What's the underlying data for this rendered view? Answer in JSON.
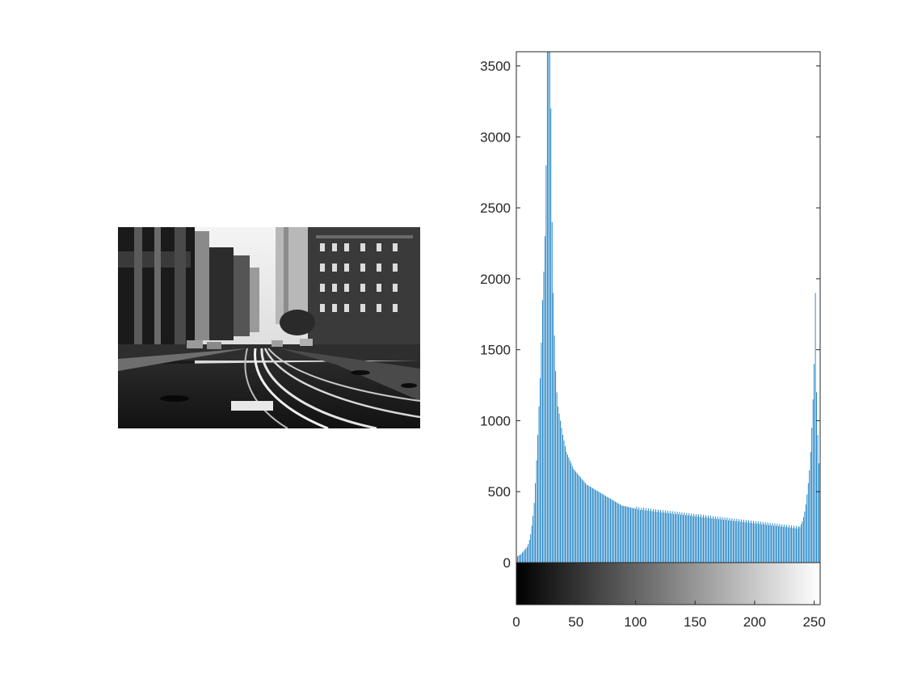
{
  "figure": {
    "image_description_icon": "grayscale-street-photo-icon"
  },
  "colors": {
    "bar": "#0072BD",
    "axis": "#262626",
    "background": "#FFFFFF"
  },
  "chart_data": {
    "type": "bar",
    "title": "",
    "xlabel": "",
    "ylabel": "",
    "xlim": [
      0,
      255
    ],
    "ylim": [
      0,
      3600
    ],
    "grid": false,
    "legend": "none",
    "colorbar": "grayscale 0 to 255 below x-axis",
    "x_ticks": [
      0,
      50,
      100,
      150,
      200,
      250
    ],
    "x_tick_labels": [
      "0",
      "50",
      "100",
      "150",
      "200",
      "250"
    ],
    "y_ticks": [
      0,
      500,
      1000,
      1500,
      2000,
      2500,
      3000,
      3500
    ],
    "y_tick_labels": [
      "0",
      "500",
      "1000",
      "1500",
      "2000",
      "2500",
      "3000",
      "3500"
    ],
    "x": "integers 0..255",
    "values": [
      40,
      45,
      50,
      55,
      60,
      70,
      80,
      90,
      100,
      110,
      130,
      160,
      200,
      260,
      330,
      420,
      560,
      720,
      900,
      1100,
      1300,
      1550,
      1850,
      2050,
      2300,
      2800,
      3600,
      3600,
      3600,
      3200,
      2400,
      1900,
      1600,
      1350,
      1200,
      1100,
      1050,
      1000,
      950,
      900,
      860,
      820,
      780,
      760,
      740,
      720,
      700,
      680,
      660,
      650,
      640,
      630,
      620,
      610,
      600,
      590,
      580,
      570,
      560,
      550,
      545,
      540,
      535,
      530,
      525,
      520,
      515,
      510,
      505,
      500,
      495,
      490,
      485,
      480,
      475,
      470,
      465,
      460,
      455,
      450,
      445,
      440,
      435,
      430,
      425,
      420,
      415,
      410,
      405,
      400,
      400,
      398,
      396,
      394,
      392,
      390,
      388,
      386,
      384,
      382,
      380,
      395,
      375,
      390,
      370,
      385,
      372,
      388,
      368,
      384,
      366,
      382,
      364,
      380,
      362,
      378,
      360,
      376,
      358,
      374,
      356,
      372,
      354,
      370,
      352,
      368,
      350,
      366,
      348,
      364,
      346,
      362,
      344,
      360,
      342,
      358,
      340,
      356,
      338,
      354,
      336,
      352,
      334,
      350,
      332,
      348,
      330,
      346,
      328,
      344,
      326,
      342,
      324,
      340,
      322,
      338,
      320,
      336,
      318,
      334,
      316,
      332,
      314,
      330,
      312,
      328,
      310,
      326,
      308,
      324,
      306,
      322,
      304,
      320,
      302,
      318,
      300,
      316,
      298,
      314,
      296,
      312,
      294,
      310,
      292,
      308,
      290,
      306,
      288,
      304,
      286,
      302,
      284,
      300,
      282,
      298,
      280,
      296,
      278,
      294,
      276,
      292,
      274,
      290,
      272,
      288,
      270,
      286,
      268,
      284,
      266,
      282,
      264,
      280,
      262,
      278,
      260,
      276,
      258,
      274,
      256,
      272,
      254,
      270,
      252,
      268,
      250,
      266,
      248,
      264,
      246,
      262,
      244,
      260,
      242,
      258,
      240,
      256,
      250,
      270,
      290,
      320,
      360,
      410,
      480,
      560,
      650,
      780,
      950,
      1150,
      1400,
      1900,
      1200,
      900,
      700,
      600
    ]
  }
}
